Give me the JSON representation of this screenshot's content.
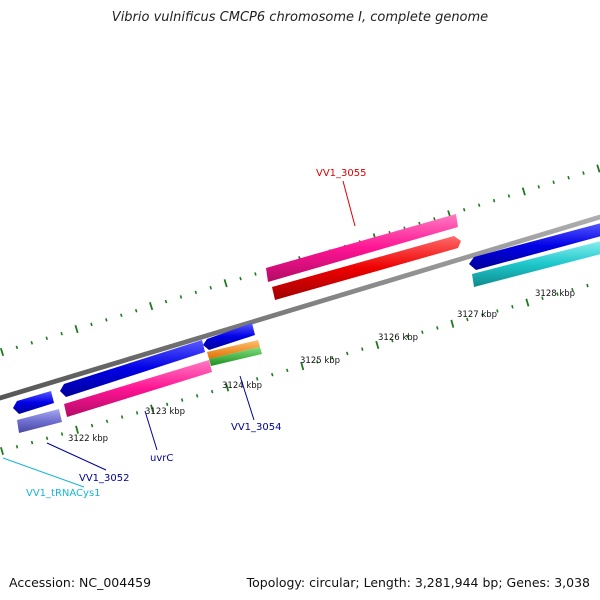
{
  "title": "Vibrio vulnificus CMCP6 chromosome I, complete genome",
  "accession_text": "Accession: NC_004459",
  "topology_text": "Topology: circular; Length: 3,281,944 bp; Genes: 3,038",
  "colors": {
    "backbone": "#808080",
    "blue": "#0000e0",
    "blue_light": "#6464ff",
    "pink": "#ff1493",
    "red": "#ee0000",
    "cyan": "#1ec8cc",
    "purple": "#7070d0",
    "orange": "#ff8c00",
    "green": "#33bb33",
    "tick": "#1f7a1f",
    "label_red": "#dd0000",
    "label_blue": "#00009a",
    "label_cyan": "#18b4d8"
  },
  "scale_ticks": [
    {
      "label": "3122 kbp"
    },
    {
      "label": "3123 kbp"
    },
    {
      "label": "3124 kbp"
    },
    {
      "label": "3125 kbp"
    },
    {
      "label": "3126 kbp"
    },
    {
      "label": "3127 kbp"
    },
    {
      "label": "3128 kbp"
    }
  ],
  "gene_labels": {
    "vv1_3055": "VV1_3055",
    "vv1_3054": "VV1_3054",
    "uvrc": "uvrC",
    "vv1_3052": "VV1_3052",
    "vv1_trnacys1": "VV1_tRNACys1"
  }
}
